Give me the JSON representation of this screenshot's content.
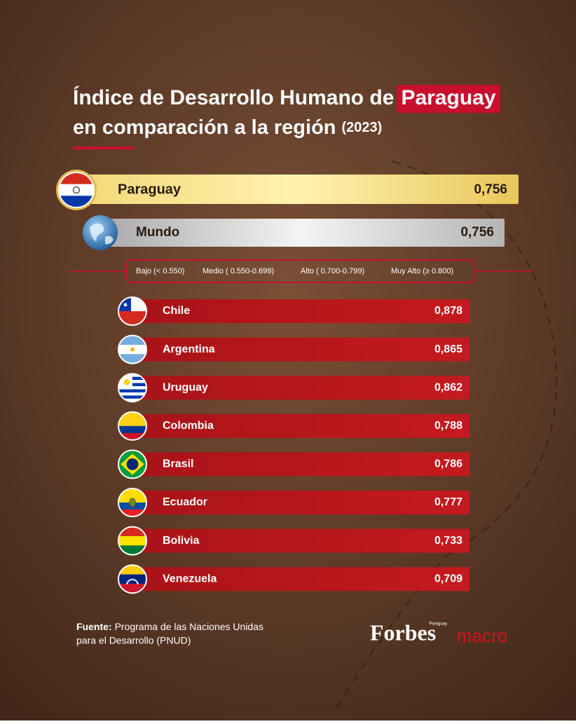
{
  "header": {
    "title_line1": "Índice de Desarrollo Humano de",
    "title_highlight": "Paraguay",
    "title_line2": "en comparación a la región",
    "year": "(2023)"
  },
  "featured": [
    {
      "name": "Paraguay",
      "value": "0,756"
    },
    {
      "name": "Mundo",
      "value": "0,756"
    }
  ],
  "legend": [
    "Bajo (< 0.550)",
    "Medio ( 0.550-0.699)",
    "Alto ( 0.700-0.799)",
    "Muy Alto (≥ 0.800)"
  ],
  "rows": [
    {
      "name": "Chile",
      "value": "0,878"
    },
    {
      "name": "Argentina",
      "value": "0,865"
    },
    {
      "name": "Uruguay",
      "value": "0,862"
    },
    {
      "name": "Colombia",
      "value": "0,788"
    },
    {
      "name": "Brasil",
      "value": "0,786"
    },
    {
      "name": "Ecuador",
      "value": "0,777"
    },
    {
      "name": "Bolivia",
      "value": "0,733"
    },
    {
      "name": "Venezuela",
      "value": "0,709"
    }
  ],
  "footer": {
    "source_label": "Fuente:",
    "source_line1": "Programa de las Naciones Unidas",
    "source_line2": "para el Desarrollo (PNUD)",
    "logo": "Forbes",
    "logo_sub": "Paraguay",
    "logo_macro": "macro"
  }
}
